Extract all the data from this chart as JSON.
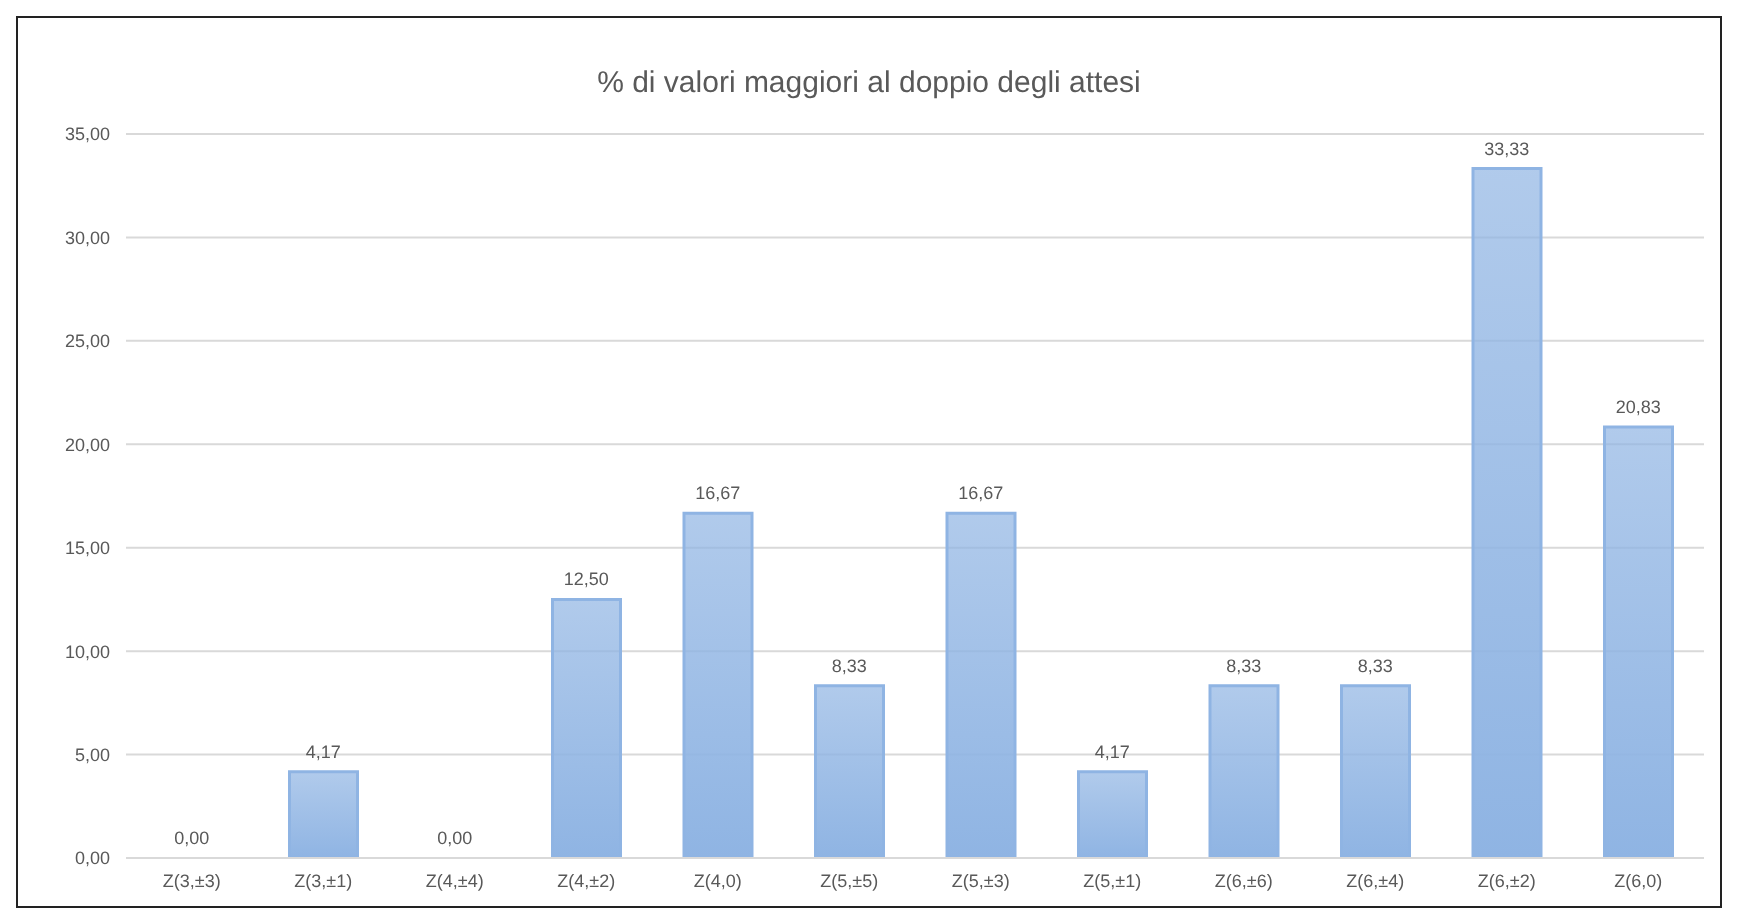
{
  "chart_data": {
    "type": "bar",
    "title": "% di valori maggiori al doppio degli attesi",
    "categories": [
      "Z(3,±3)",
      "Z(3,±1)",
      "Z(4,±4)",
      "Z(4,±2)",
      "Z(4,0)",
      "Z(5,±5)",
      "Z(5,±3)",
      "Z(5,±1)",
      "Z(6,±6)",
      "Z(6,±4)",
      "Z(6,±2)",
      "Z(6,0)"
    ],
    "values": [
      0,
      4.17,
      0,
      12.5,
      16.67,
      8.33,
      16.67,
      4.17,
      8.33,
      8.33,
      33.33,
      20.83
    ],
    "value_labels": [
      "0,00",
      "4,17",
      "0,00",
      "12,50",
      "16,67",
      "8,33",
      "16,67",
      "4,17",
      "8,33",
      "8,33",
      "33,33",
      "20,83"
    ],
    "color": "#8fb4e3",
    "ylim": [
      0,
      35
    ],
    "yticks": [
      {
        "value": 0,
        "label": "0,00"
      },
      {
        "value": 5,
        "label": "5,00"
      },
      {
        "value": 10,
        "label": "10,00"
      },
      {
        "value": 15,
        "label": "15,00"
      },
      {
        "value": 20,
        "label": "20,00"
      },
      {
        "value": 25,
        "label": "25,00"
      },
      {
        "value": 30,
        "label": "30,00"
      },
      {
        "value": 35,
        "label": "35,00"
      }
    ],
    "grid": "y"
  }
}
